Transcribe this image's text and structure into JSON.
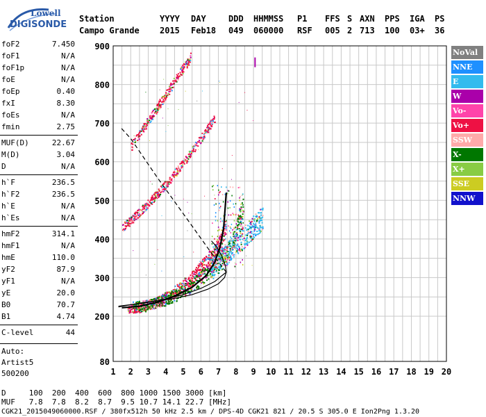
{
  "logo": {
    "top": "Lowell",
    "bottom": "DIGISONDE"
  },
  "header": {
    "labels": [
      "Station",
      "YYYY",
      "DAY",
      "DDD",
      "HHMMSS",
      "P1",
      "FFS",
      "S",
      "AXN",
      "PPS",
      "IGA",
      "PS"
    ],
    "values": [
      "Campo Grande",
      "2015",
      "Feb18",
      "049",
      "060000",
      "RSF",
      "005",
      "2",
      "713",
      "100",
      "03+",
      "36"
    ]
  },
  "params": {
    "group1": [
      {
        "name": "foF2",
        "value": "7.450"
      },
      {
        "name": "foF1",
        "value": "N/A"
      },
      {
        "name": "foF1p",
        "value": "N/A"
      },
      {
        "name": "foE",
        "value": "N/A"
      },
      {
        "name": "foEp",
        "value": "0.40"
      },
      {
        "name": "fxI",
        "value": "8.30"
      },
      {
        "name": "foEs",
        "value": "N/A"
      },
      {
        "name": "fmin",
        "value": "2.75"
      }
    ],
    "group2": [
      {
        "name": "MUF(D)",
        "value": "22.67"
      },
      {
        "name": "M(D)",
        "value": "3.04"
      },
      {
        "name": "D",
        "value": "N/A"
      }
    ],
    "group3": [
      {
        "name": "h`F",
        "value": "236.5"
      },
      {
        "name": "h`F2",
        "value": "236.5"
      },
      {
        "name": "h`E",
        "value": "N/A"
      },
      {
        "name": "h`Es",
        "value": "N/A"
      }
    ],
    "group4": [
      {
        "name": "hmF2",
        "value": "314.1"
      },
      {
        "name": "hmF1",
        "value": "N/A"
      },
      {
        "name": "hmE",
        "value": "110.0"
      },
      {
        "name": "yF2",
        "value": "87.9"
      },
      {
        "name": "yF1",
        "value": "N/A"
      },
      {
        "name": "yE",
        "value": "20.0"
      },
      {
        "name": "B0",
        "value": "70.7"
      },
      {
        "name": "B1",
        "value": "4.74"
      }
    ],
    "group5": [
      {
        "name": "C-level",
        "value": "44"
      }
    ],
    "auto": [
      "Auto:",
      "Artist5",
      "500200"
    ]
  },
  "legend": [
    {
      "label": "NoVal",
      "color": "#808080"
    },
    {
      "label": "NNE",
      "color": "#1e90ff"
    },
    {
      "label": "E",
      "color": "#33bbee"
    },
    {
      "label": "W",
      "color": "#aa00aa"
    },
    {
      "label": "Vo-",
      "color": "#ff44aa"
    },
    {
      "label": "Vo+",
      "color": "#ee1144"
    },
    {
      "label": "SSW",
      "color": "#ffaaaa"
    },
    {
      "label": "X-",
      "color": "#007700"
    },
    {
      "label": "X+",
      "color": "#88cc44"
    },
    {
      "label": "SSE",
      "color": "#cccc22"
    },
    {
      "label": "NNW",
      "color": "#1111cc"
    }
  ],
  "bottom": {
    "line1": "D     100  200  400  600  800 1000 1500 3000 [km]",
    "line2": "MUF   7.8  7.8  8.2  8.7  9.5 10.7 14.1 22.7 [MHz]",
    "line3": "CGK21_2015049060000.RSF / 380fx512h 50 kHz 2.5 km / DPS-4D CGK21 821 / 20.5 S 305.0 E Ion2Png 1.3.20"
  },
  "chart_data": {
    "type": "scatter",
    "title": "",
    "xlabel": "",
    "ylabel": "",
    "xlim": [
      1,
      20
    ],
    "ylim": [
      80,
      900
    ],
    "x_ticks": [
      "1",
      "2",
      "3",
      "4",
      "5",
      "6",
      "7",
      "8",
      "9",
      "10",
      "11",
      "12",
      "13",
      "14",
      "15",
      "16",
      "17",
      "18",
      "19",
      "20"
    ],
    "y_ticks": [
      "80",
      "200",
      "300",
      "400",
      "500",
      "600",
      "700",
      "800",
      "900"
    ],
    "grid": true,
    "legend_placement": "right",
    "curves": {
      "true_height_profile": [
        [
          1.3,
          226
        ],
        [
          2,
          230
        ],
        [
          3,
          236
        ],
        [
          4,
          244
        ],
        [
          5,
          256
        ],
        [
          6,
          272
        ],
        [
          6.8,
          290
        ],
        [
          7.2,
          305
        ],
        [
          7.45,
          314
        ]
      ],
      "virtual_height_trace": [
        [
          1.5,
          222
        ],
        [
          2.5,
          226
        ],
        [
          3.5,
          236
        ],
        [
          4.5,
          252
        ],
        [
          5.5,
          275
        ],
        [
          6.3,
          305
        ],
        [
          6.8,
          340
        ],
        [
          7.1,
          380
        ],
        [
          7.3,
          430
        ],
        [
          7.45,
          520
        ]
      ],
      "dashed_topside": [
        [
          7.45,
          314
        ],
        [
          6.5,
          370
        ],
        [
          5,
          465
        ],
        [
          3.5,
          560
        ],
        [
          2,
          660
        ],
        [
          1.4,
          690
        ]
      ]
    },
    "clusters": [
      {
        "name": "o-trace",
        "color": "#ee1144",
        "x": [
          1.8,
          7.4
        ],
        "y": [
          215,
          380
        ]
      },
      {
        "name": "x-trace",
        "color": "#007700",
        "x": [
          2.0,
          8.3
        ],
        "y": [
          225,
          400
        ]
      },
      {
        "name": "oblique",
        "color": "#33bbee",
        "x": [
          6.5,
          9.5
        ],
        "y": [
          300,
          450
        ]
      },
      {
        "name": "second-hop",
        "color": "#ee1144",
        "x": [
          1.5,
          6.8
        ],
        "y": [
          430,
          620
        ]
      },
      {
        "name": "third-hop",
        "color": "#ee1144",
        "x": [
          2.0,
          5.4
        ],
        "y": [
          640,
          880
        ]
      }
    ]
  }
}
